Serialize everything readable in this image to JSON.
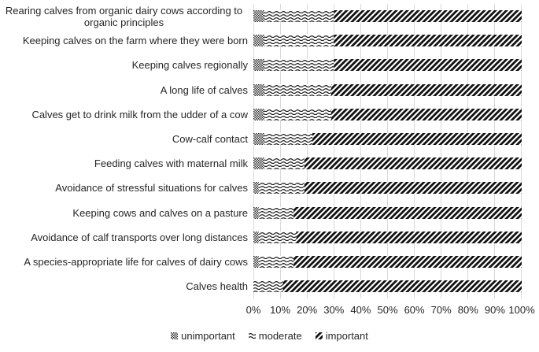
{
  "chart_data": {
    "type": "bar",
    "orientation": "horizontal",
    "stacked": true,
    "value_unit": "percent",
    "title": "",
    "categories": [
      "Rearing calves from organic dairy cows according to organic principles",
      "Keeping calves on the farm where they were born",
      "Keeping calves regionally",
      "A long life of calves",
      "Calves get to drink milk from the udder of a cow",
      "Cow-calf contact",
      "Feeding calves with maternal milk",
      "Avoidance of stressful situations for calves",
      "Keeping cows and calves on a pasture",
      "Avoidance of calf transports over long distances",
      "A species-appropriate life for calves of dairy cows",
      "Calves health"
    ],
    "series": [
      {
        "name": "unimportant",
        "pattern": "checker",
        "values": [
          4,
          4,
          4,
          4,
          4,
          4,
          4,
          2,
          2,
          2,
          2,
          0
        ]
      },
      {
        "name": "moderate",
        "pattern": "wave",
        "values": [
          26,
          26,
          26,
          25,
          25,
          18,
          15,
          17,
          13,
          14,
          13,
          11
        ]
      },
      {
        "name": "important",
        "pattern": "diagonal",
        "values": [
          70,
          70,
          70,
          71,
          71,
          78,
          81,
          81,
          85,
          84,
          85,
          89
        ]
      }
    ],
    "x_ticks": [
      "0%",
      "10%",
      "20%",
      "30%",
      "40%",
      "50%",
      "60%",
      "70%",
      "80%",
      "90%",
      "100%"
    ],
    "xlim": [
      0,
      100
    ],
    "grid": "vertical",
    "legend_position": "bottom",
    "colors": {
      "pattern_ink": "#1a1a1a",
      "background": "#ffffff",
      "gridline": "#d9d9d9",
      "text": "#262626"
    }
  }
}
